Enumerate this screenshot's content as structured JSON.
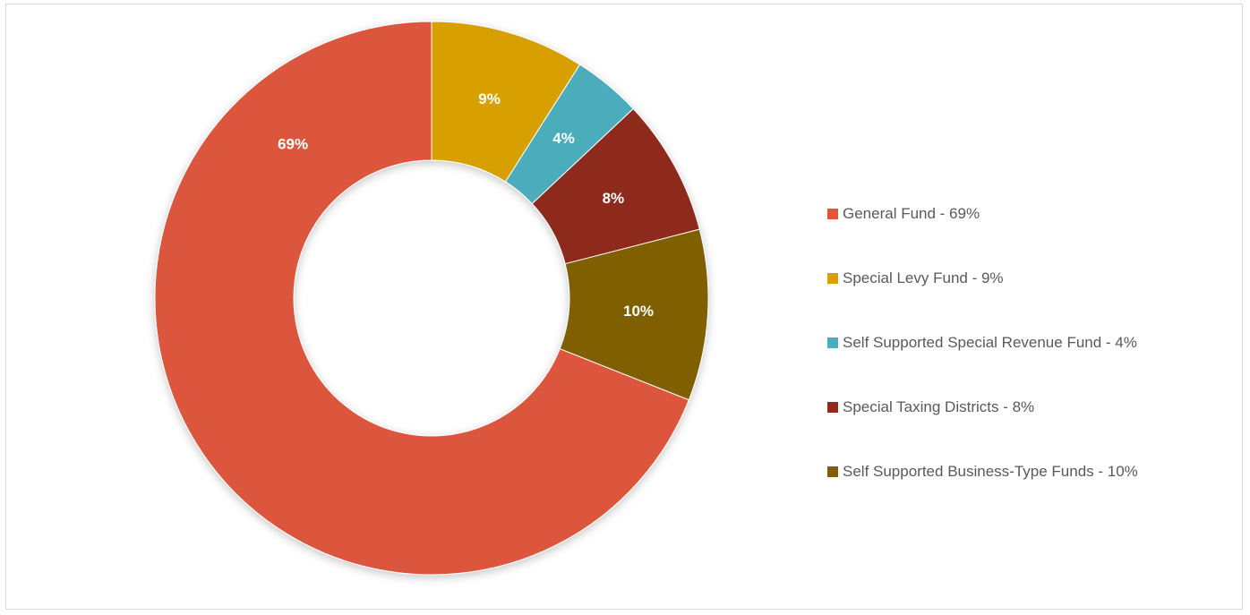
{
  "chart_data": {
    "type": "pie",
    "variant": "doughnut",
    "title": "",
    "start_angle_deg": 0,
    "direction": "clockwise",
    "legend_position": "right",
    "slices": [
      {
        "name": "Special Levy Fund",
        "value": 9,
        "label": "9%",
        "legend": "Special Levy Fund - 9%",
        "color": "#D7A000"
      },
      {
        "name": "Self Supported Special Revenue Fund",
        "value": 4,
        "label": "4%",
        "legend": "Self Supported Special Revenue Fund - 4%",
        "color": "#4BACBB"
      },
      {
        "name": "Special Taxing Districts",
        "value": 8,
        "label": "8%",
        "legend": "Special Taxing Districts - 8%",
        "color": "#8E2B1A"
      },
      {
        "name": "Self Supported Business-Type Funds",
        "value": 10,
        "label": "10%",
        "legend": "Self Supported Business-Type Funds - 10%",
        "color": "#7F5F00"
      },
      {
        "name": "General Fund",
        "value": 69,
        "label": "69%",
        "legend": "General Fund - 69%",
        "color": "#DC573C"
      }
    ],
    "legend_order": [
      "General Fund",
      "Special Levy Fund",
      "Self Supported Special Revenue Fund",
      "Special Taxing Districts",
      "Self Supported Business-Type Funds"
    ]
  }
}
